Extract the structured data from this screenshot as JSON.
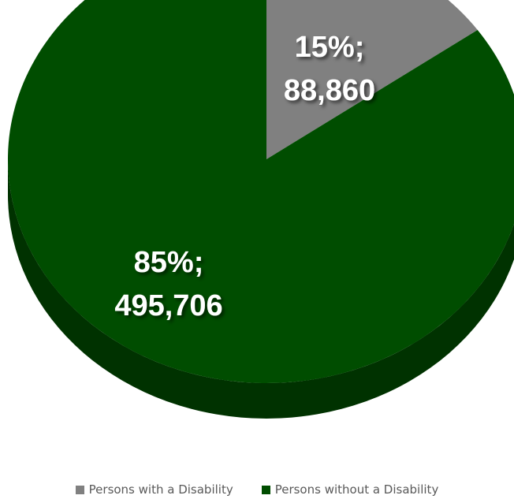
{
  "chart_data": {
    "type": "pie",
    "title": "",
    "style": "3d",
    "slices": [
      {
        "name": "Persons with a Disability",
        "value": 88860,
        "percent": "15%",
        "label_value": "88,860",
        "color": "#808080",
        "side_color": "#5a5a5a"
      },
      {
        "name": "Persons without a Disability",
        "value": 495706,
        "percent": "85%",
        "label_value": "495,706",
        "color": "#004d00",
        "side_color": "#003200"
      }
    ],
    "legend_position": "bottom"
  }
}
